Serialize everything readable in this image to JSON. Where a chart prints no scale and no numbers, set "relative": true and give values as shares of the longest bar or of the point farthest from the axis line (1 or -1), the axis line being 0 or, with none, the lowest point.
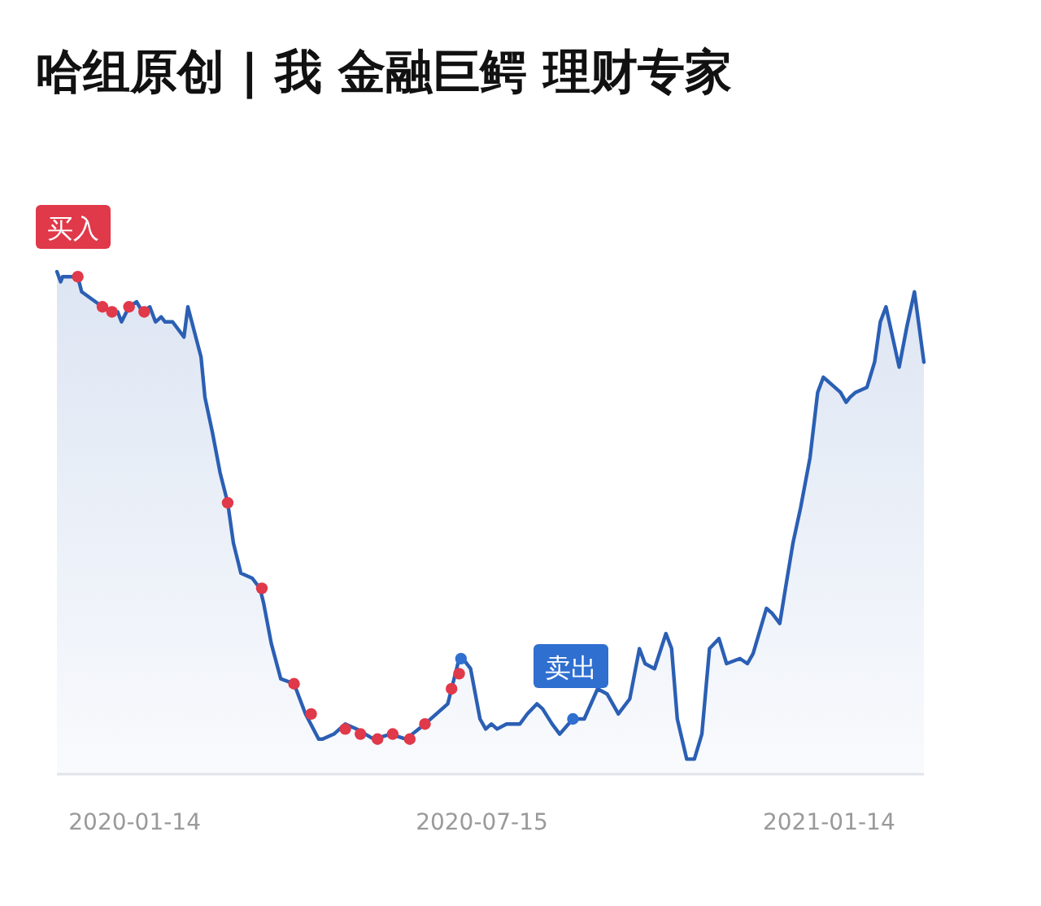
{
  "chart_data": {
    "type": "area",
    "title": "哈组原创 | 我 金融巨鳄 理财专家",
    "relative": true,
    "xlim": [
      "2019-12-04",
      "2021-03-05"
    ],
    "xticks": [
      "2020-01-14",
      "2020-07-15",
      "2021-01-14"
    ],
    "annotations": [
      "买入",
      "卖出"
    ],
    "series": [
      {
        "color": "#2b5fb4",
        "x": [
          "2019-12-04",
          "2019-12-06",
          "2019-12-07",
          "2019-12-15",
          "2019-12-17",
          "2019-12-28",
          "2020-01-01",
          "2020-01-05",
          "2020-01-07",
          "2020-01-11",
          "2020-01-15",
          "2020-01-18",
          "2020-01-22",
          "2020-01-25",
          "2020-01-28",
          "2020-01-30",
          "2020-02-03",
          "2020-02-09",
          "2020-02-11",
          "2020-02-18",
          "2020-02-20",
          "2020-02-24",
          "2020-02-28",
          "2020-03-03",
          "2020-03-06",
          "2020-03-10",
          "2020-03-16",
          "2020-03-20",
          "2020-03-22",
          "2020-03-26",
          "2020-03-31",
          "2020-04-07",
          "2020-04-13",
          "2020-04-20",
          "2020-04-22",
          "2020-04-28",
          "2020-05-04",
          "2020-05-10",
          "2020-05-19",
          "2020-05-28",
          "2020-06-05",
          "2020-06-15",
          "2020-06-27",
          "2020-06-29",
          "2020-07-03",
          "2020-07-05",
          "2020-07-09",
          "2020-07-14",
          "2020-07-17",
          "2020-07-20",
          "2020-07-23",
          "2020-07-28",
          "2020-08-04",
          "2020-08-08",
          "2020-08-13",
          "2020-08-16",
          "2020-08-21",
          "2020-08-25",
          "2020-09-01",
          "2020-09-07",
          "2020-09-14",
          "2020-09-19",
          "2020-09-25",
          "2020-10-01",
          "2020-10-06",
          "2020-10-09",
          "2020-10-14",
          "2020-10-20",
          "2020-10-23",
          "2020-10-26",
          "2020-10-31",
          "2020-11-04",
          "2020-11-08",
          "2020-11-12",
          "2020-11-17",
          "2020-11-21",
          "2020-11-28",
          "2020-12-02",
          "2020-12-05",
          "2020-12-12",
          "2020-12-15",
          "2020-12-19",
          "2020-12-22",
          "2020-12-26",
          "2020-12-30",
          "2021-01-04",
          "2021-01-08",
          "2021-01-11",
          "2021-01-17",
          "2021-01-20",
          "2021-01-23",
          "2021-01-25",
          "2021-01-28",
          "2021-02-03",
          "2021-02-07",
          "2021-02-10",
          "2021-02-13",
          "2021-02-20",
          "2021-02-24",
          "2021-02-28",
          "2021-03-05"
        ],
        "values": [
          1.0,
          0.98,
          0.99,
          0.99,
          0.96,
          0.93,
          0.92,
          0.92,
          0.9,
          0.93,
          0.94,
          0.92,
          0.93,
          0.9,
          0.91,
          0.9,
          0.9,
          0.87,
          0.93,
          0.83,
          0.75,
          0.68,
          0.6,
          0.54,
          0.46,
          0.4,
          0.39,
          0.37,
          0.34,
          0.26,
          0.19,
          0.18,
          0.12,
          0.07,
          0.07,
          0.08,
          0.1,
          0.09,
          0.07,
          0.08,
          0.07,
          0.1,
          0.14,
          0.17,
          0.23,
          0.23,
          0.21,
          0.11,
          0.09,
          0.1,
          0.09,
          0.1,
          0.1,
          0.12,
          0.14,
          0.13,
          0.1,
          0.08,
          0.11,
          0.11,
          0.17,
          0.16,
          0.12,
          0.15,
          0.25,
          0.22,
          0.21,
          0.28,
          0.25,
          0.11,
          0.03,
          0.03,
          0.08,
          0.25,
          0.27,
          0.22,
          0.23,
          0.22,
          0.24,
          0.33,
          0.32,
          0.3,
          0.37,
          0.46,
          0.53,
          0.63,
          0.76,
          0.79,
          0.77,
          0.76,
          0.74,
          0.75,
          0.76,
          0.77,
          0.82,
          0.9,
          0.93,
          0.81,
          0.89,
          0.96,
          0.82
        ]
      },
      {
        "type": "scatter",
        "color": "#e0394a",
        "marker": "circle",
        "x": [
          "2019-12-15",
          "2019-12-28",
          "2020-01-02",
          "2020-01-11",
          "2020-01-19",
          "2020-03-03",
          "2020-03-21",
          "2020-04-07",
          "2020-04-16",
          "2020-05-04",
          "2020-05-12",
          "2020-05-21",
          "2020-05-29",
          "2020-06-07",
          "2020-06-15",
          "2020-06-29",
          "2020-07-03"
        ],
        "values": [
          0.99,
          0.93,
          0.92,
          0.93,
          0.92,
          0.54,
          0.37,
          0.18,
          0.12,
          0.09,
          0.08,
          0.07,
          0.08,
          0.07,
          0.1,
          0.17,
          0.2
        ]
      },
      {
        "type": "scatter",
        "color": "#2f6fd0",
        "marker": "circle",
        "x": [
          "2020-07-04",
          "2020-09-01"
        ],
        "values": [
          0.23,
          0.11
        ]
      }
    ]
  }
}
